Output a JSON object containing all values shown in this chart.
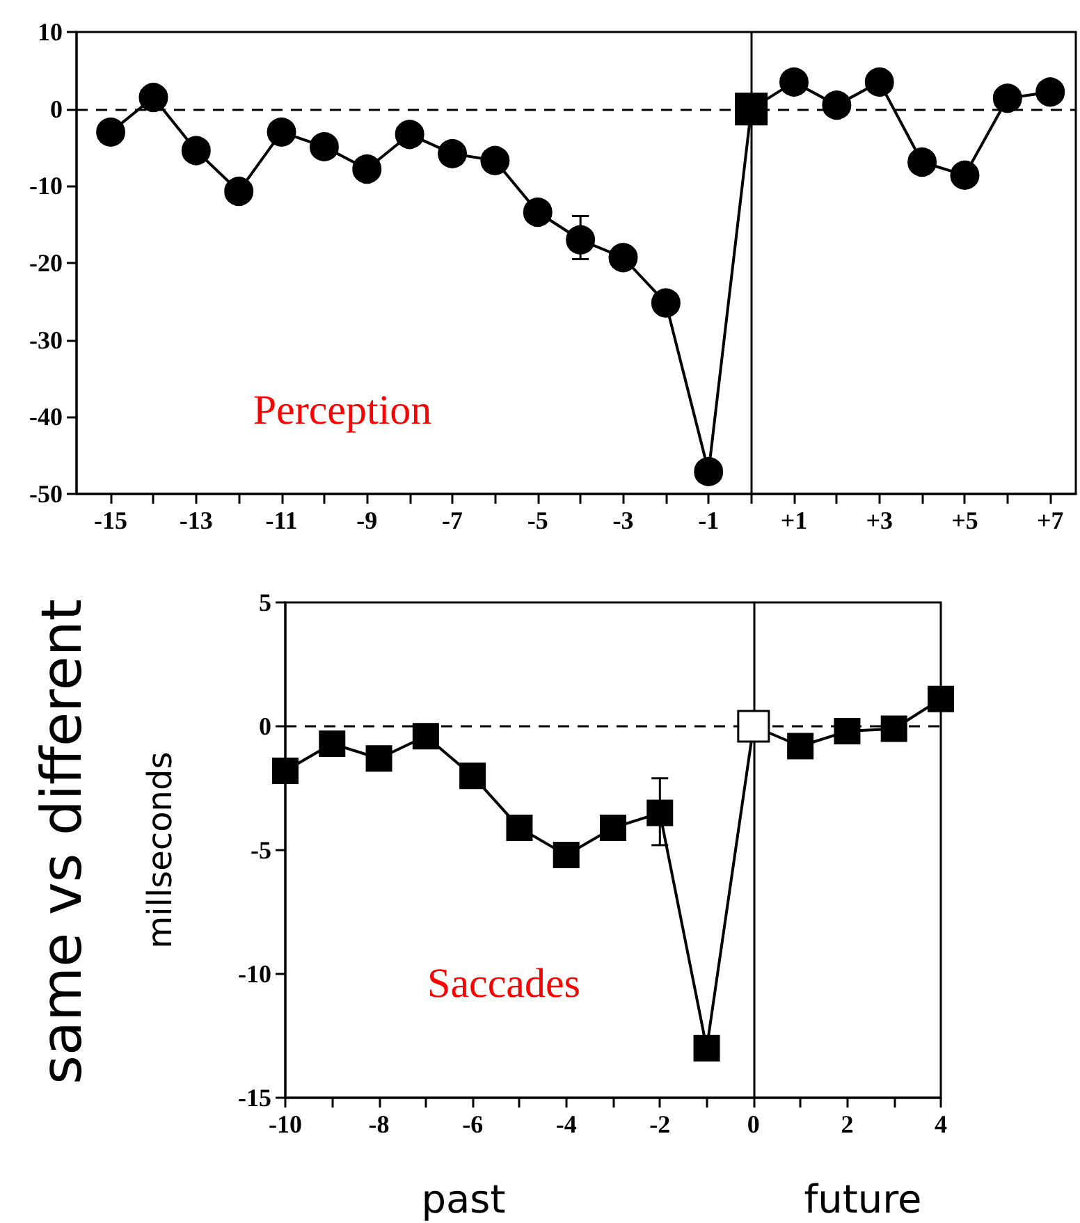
{
  "chart_data": [
    {
      "type": "line",
      "annotations": [
        "Perception"
      ],
      "xlim": [
        -15.8,
        7.6
      ],
      "xticks": [
        -15,
        {
          "value": -14,
          "label": null
        },
        -13,
        {
          "value": -12,
          "label": null
        },
        -11,
        {
          "value": -10,
          "label": null
        },
        -9,
        {
          "value": -8,
          "label": null
        },
        -7,
        {
          "value": -6,
          "label": null
        },
        -5,
        {
          "value": -4,
          "label": null
        },
        -3,
        {
          "value": -2,
          "label": null
        },
        -1,
        {
          "value": 0,
          "label": null
        },
        {
          "value": 1,
          "label": "+1"
        },
        {
          "value": 2,
          "label": null
        },
        {
          "value": 3,
          "label": "+3"
        },
        {
          "value": 4,
          "label": null
        },
        {
          "value": 5,
          "label": "+5"
        },
        {
          "value": 6,
          "label": null
        },
        {
          "value": 7,
          "label": "+7"
        }
      ],
      "ylim": [
        -50,
        10
      ],
      "yticks": [
        -50,
        -40,
        -30,
        -20,
        -10,
        0,
        10
      ],
      "ref_lines": [
        {
          "axis": "y",
          "value": 0,
          "line_style": "dashed",
          "color": "#000000"
        },
        {
          "axis": "x",
          "value": 0,
          "line_style": "solid",
          "color": "#000000"
        }
      ],
      "series": [
        {
          "marker": "circle",
          "color": "#000000",
          "x": [
            -15,
            -14,
            -13,
            -12,
            -11,
            -10,
            -9,
            -8,
            -7,
            -6,
            -5,
            -4,
            -3,
            -2,
            -1,
            0,
            1,
            2,
            3,
            4,
            5,
            6,
            7
          ],
          "values": [
            -3,
            1.5,
            -5.4,
            -10.7,
            -3,
            -4.9,
            -7.8,
            -3.3,
            -5.8,
            -6.7,
            -13.4,
            -17,
            -19.3,
            -25.2,
            -47.1,
            0,
            3.5,
            0.5,
            3.5,
            -6.9,
            -8.6,
            1.4,
            2.2
          ],
          "errors": [
            null,
            null,
            null,
            null,
            null,
            null,
            null,
            null,
            null,
            null,
            null,
            [
              -19.5,
              -13.9
            ],
            null,
            null,
            null,
            null,
            null,
            null,
            null,
            null,
            null,
            null,
            null
          ]
        },
        {
          "type": "scatter",
          "marker": "square",
          "color": "#000000",
          "x": [
            0
          ],
          "values": [
            0
          ]
        }
      ]
    },
    {
      "type": "line",
      "ylabel": "millseconds",
      "annotations": [
        "Saccades",
        "same vs different",
        "past",
        "future"
      ],
      "xlim": [
        -10,
        4
      ],
      "xticks": [
        -10,
        {
          "value": -9,
          "label": null
        },
        -8,
        {
          "value": -7,
          "label": null
        },
        -6,
        {
          "value": -5,
          "label": null
        },
        -4,
        {
          "value": -3,
          "label": null
        },
        -2,
        {
          "value": -1,
          "label": null
        },
        0,
        {
          "value": 1,
          "label": null
        },
        2,
        {
          "value": 3,
          "label": null
        },
        4
      ],
      "ylim": [
        -15,
        5
      ],
      "yticks": [
        -15,
        -10,
        -5,
        0,
        5
      ],
      "ref_lines": [
        {
          "axis": "y",
          "value": 0,
          "line_style": "dashed",
          "color": "#000000"
        },
        {
          "axis": "x",
          "value": 0,
          "line_style": "solid",
          "color": "#000000"
        }
      ],
      "series": [
        {
          "marker": "square",
          "color": "#000000",
          "x": [
            -10,
            -9,
            -8,
            -7,
            -6,
            -5,
            -4,
            -3,
            -2,
            -1,
            0,
            1,
            2,
            3,
            4
          ],
          "values": [
            -1.8,
            -0.7,
            -1.3,
            -0.4,
            -2.0,
            -4.1,
            -5.2,
            -4.1,
            -3.5,
            -13.0,
            0,
            -0.8,
            -0.2,
            -0.1,
            1.1
          ],
          "errors": [
            null,
            null,
            null,
            null,
            null,
            null,
            null,
            null,
            [
              -4.8,
              -2.1
            ],
            null,
            null,
            null,
            null,
            null,
            null
          ]
        },
        {
          "type": "scatter",
          "marker": "square",
          "color": "#ffffff",
          "x": [
            0
          ],
          "values": [
            0
          ]
        }
      ]
    }
  ]
}
